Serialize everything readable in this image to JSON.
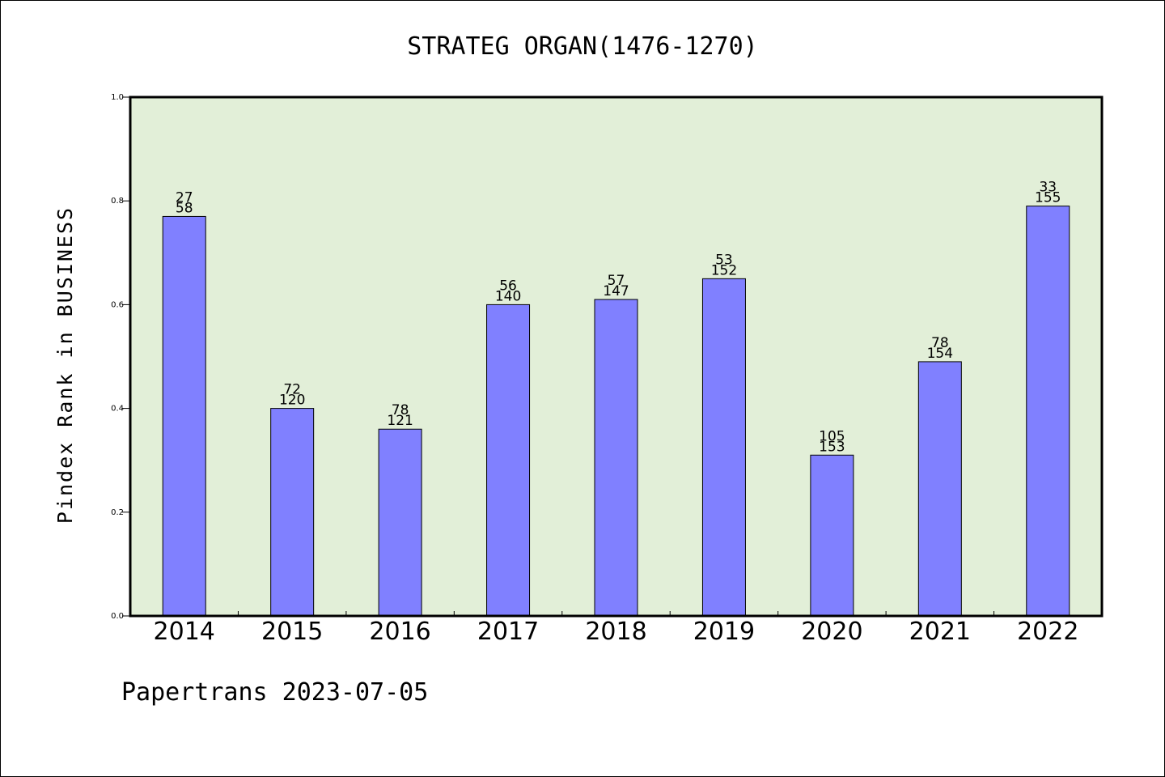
{
  "chart_data": {
    "type": "bar",
    "title": "STRATEG ORGAN(1476-1270)",
    "xlabel": "",
    "ylabel": "Pindex Rank in BUSINESS",
    "categories": [
      "2014",
      "2015",
      "2016",
      "2017",
      "2018",
      "2019",
      "2020",
      "2021",
      "2022"
    ],
    "series": [
      {
        "values": [
          0.77,
          0.4,
          0.36,
          0.6,
          0.61,
          0.65,
          0.31,
          0.49,
          0.79
        ],
        "label_top": [
          "27",
          "72",
          "78",
          "56",
          "57",
          "53",
          "105",
          "78",
          "33"
        ],
        "label_bottom": [
          "58",
          "120",
          "121",
          "140",
          "147",
          "152",
          "153",
          "154",
          "155"
        ]
      }
    ],
    "ylim": [
      0.0,
      1.0
    ],
    "yticks": [
      "0.0",
      "0.2",
      "0.4",
      "0.6",
      "0.8",
      "1.0"
    ],
    "grid": false,
    "colors": {
      "plot_background": "#e2efd8",
      "bar_fill": "#8080ff",
      "bar_edge": "#000000"
    }
  },
  "footer": "Papertrans 2023-07-05"
}
